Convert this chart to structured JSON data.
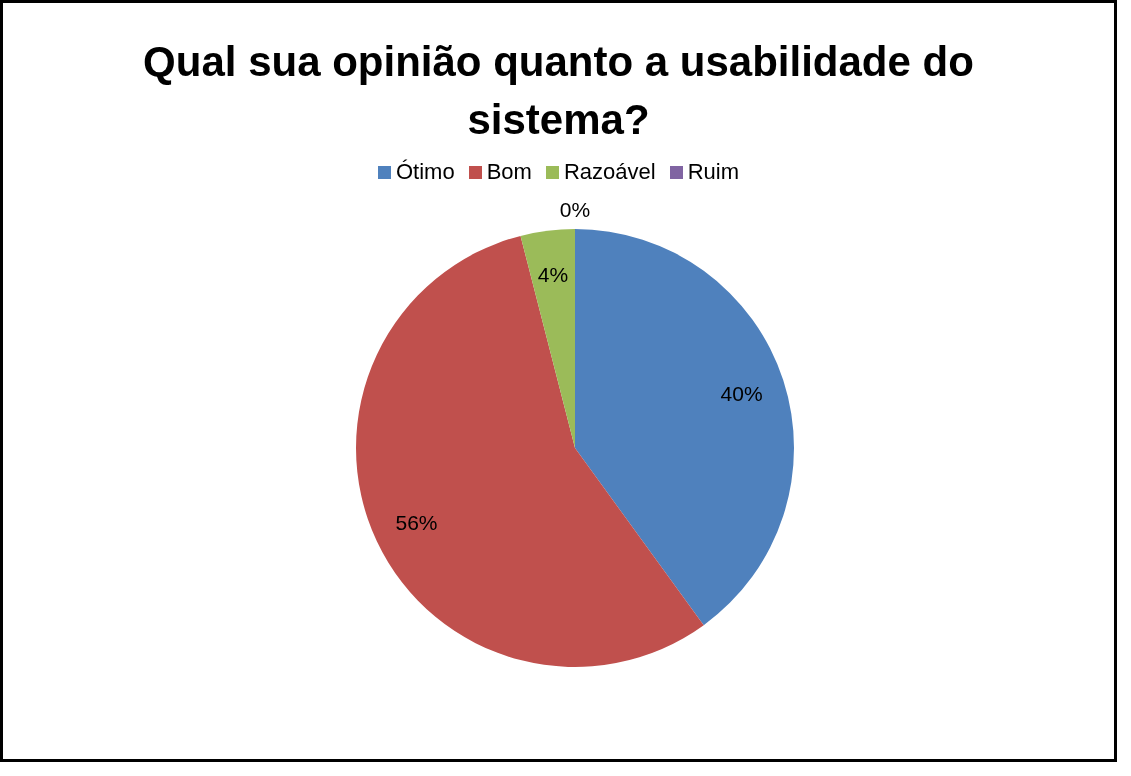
{
  "chart_data": {
    "type": "pie",
    "title": "Qual sua opinião quanto a usabilidade do sistema?",
    "categories": [
      "Ótimo",
      "Bom",
      "Razoável",
      "Ruim"
    ],
    "values": [
      40,
      56,
      4,
      0
    ],
    "colors": [
      "#4f81bd",
      "#c0504d",
      "#9bbb59",
      "#8064a2"
    ],
    "value_labels": [
      "40%",
      "56%",
      "4%",
      "0%"
    ],
    "legend": "top"
  }
}
